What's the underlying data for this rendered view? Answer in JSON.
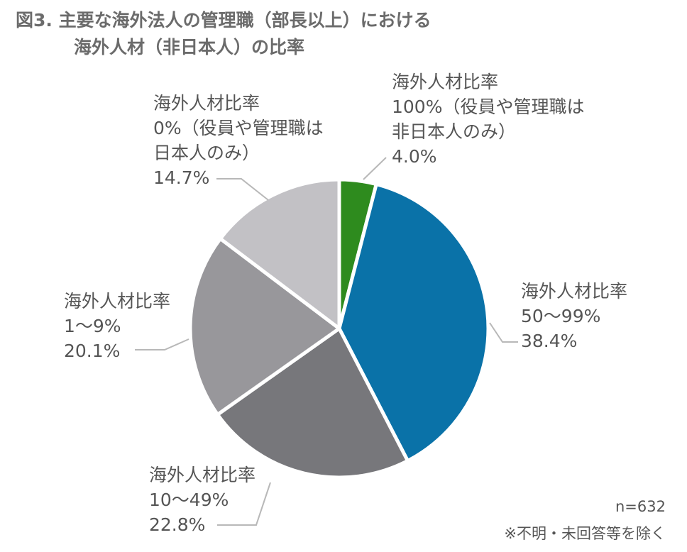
{
  "title": {
    "line1": "図3. 主要な海外法人の管理職（部長以上）における",
    "line2": "海外人材（非日本人）の比率"
  },
  "chart_data": {
    "type": "pie",
    "slices": [
      {
        "label_lines": [
          "海外人材比率",
          "100%（役員や管理職は",
          "非日本人のみ）"
        ],
        "value": 4.0,
        "value_label": "4.0%",
        "color": "#2e8b1e"
      },
      {
        "label_lines": [
          "海外人材比率",
          "50〜99%"
        ],
        "value": 38.4,
        "value_label": "38.4%",
        "color": "#0a72a8"
      },
      {
        "label_lines": [
          "海外人材比率",
          "10〜49%"
        ],
        "value": 22.8,
        "value_label": "22.8%",
        "color": "#77777b"
      },
      {
        "label_lines": [
          "海外人材比率",
          "1〜9%"
        ],
        "value": 20.1,
        "value_label": "20.1%",
        "color": "#98979b"
      },
      {
        "label_lines": [
          "海外人材比率",
          "0%（役員や管理職は",
          "日本人のみ）"
        ],
        "value": 14.7,
        "value_label": "14.7%",
        "color": "#c2c1c5"
      }
    ],
    "start": "12 o'clock",
    "direction": "clockwise",
    "legend": "none"
  },
  "notes": {
    "n": "n=632",
    "exclusion": "※不明・未回答等を除く"
  }
}
